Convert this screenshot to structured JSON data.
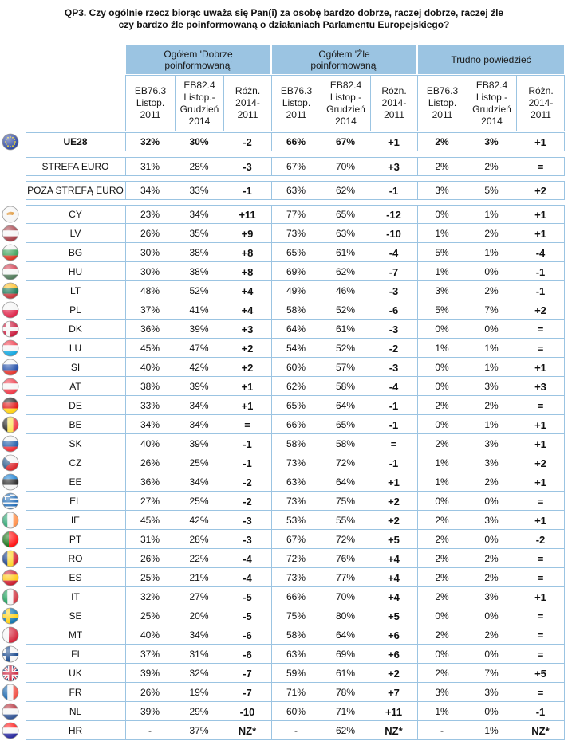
{
  "title": {
    "line1": "QP3. Czy ogólnie rzecz biorąc uważa się Pan(i) za osobę bardzo dobrze, raczej dobrze, raczej źle",
    "line2": "czy bardzo źle poinformowaną o działaniach Parlamentu Europejskiego?"
  },
  "groups": [
    {
      "label": "Ogółem 'Dobrze poinformowaną'"
    },
    {
      "label": "Ogółem 'Źle poinformowaną'"
    },
    {
      "label": "Trudno powiedzieć"
    }
  ],
  "subheaders": [
    "EB76.3 Listop. 2011",
    "EB82.4 Listop.- Grudzień 2014",
    "Różn. 2014- 2011"
  ],
  "colors": {
    "header_bg": "#9bc4e2",
    "border": "#9bc4e2"
  },
  "rows": [
    {
      "label": "UE28",
      "flag": "eu",
      "v": [
        "32%",
        "30%",
        "-2",
        "66%",
        "67%",
        "+1",
        "2%",
        "3%",
        "+1"
      ],
      "bold": true
    },
    {
      "label": "STREFA EURO",
      "flag": "",
      "v": [
        "31%",
        "28%",
        "-3",
        "67%",
        "70%",
        "+3",
        "2%",
        "2%",
        "="
      ]
    },
    {
      "label": "POZA STREFĄ EURO",
      "flag": "",
      "v": [
        "34%",
        "33%",
        "-1",
        "63%",
        "62%",
        "-1",
        "3%",
        "5%",
        "+2"
      ]
    },
    {
      "label": "CY",
      "flag": "cy",
      "v": [
        "23%",
        "34%",
        "+11",
        "77%",
        "65%",
        "-12",
        "0%",
        "1%",
        "+1"
      ]
    },
    {
      "label": "LV",
      "flag": "lv",
      "v": [
        "26%",
        "35%",
        "+9",
        "73%",
        "63%",
        "-10",
        "1%",
        "2%",
        "+1"
      ]
    },
    {
      "label": "BG",
      "flag": "bg",
      "v": [
        "30%",
        "38%",
        "+8",
        "65%",
        "61%",
        "-4",
        "5%",
        "1%",
        "-4"
      ]
    },
    {
      "label": "HU",
      "flag": "hu",
      "v": [
        "30%",
        "38%",
        "+8",
        "69%",
        "62%",
        "-7",
        "1%",
        "0%",
        "-1"
      ]
    },
    {
      "label": "LT",
      "flag": "lt",
      "v": [
        "48%",
        "52%",
        "+4",
        "49%",
        "46%",
        "-3",
        "3%",
        "2%",
        "-1"
      ]
    },
    {
      "label": "PL",
      "flag": "pl",
      "v": [
        "37%",
        "41%",
        "+4",
        "58%",
        "52%",
        "-6",
        "5%",
        "7%",
        "+2"
      ]
    },
    {
      "label": "DK",
      "flag": "dk",
      "v": [
        "36%",
        "39%",
        "+3",
        "64%",
        "61%",
        "-3",
        "0%",
        "0%",
        "="
      ]
    },
    {
      "label": "LU",
      "flag": "lu",
      "v": [
        "45%",
        "47%",
        "+2",
        "54%",
        "52%",
        "-2",
        "1%",
        "1%",
        "="
      ]
    },
    {
      "label": "SI",
      "flag": "si",
      "v": [
        "40%",
        "42%",
        "+2",
        "60%",
        "57%",
        "-3",
        "0%",
        "1%",
        "+1"
      ]
    },
    {
      "label": "AT",
      "flag": "at",
      "v": [
        "38%",
        "39%",
        "+1",
        "62%",
        "58%",
        "-4",
        "0%",
        "3%",
        "+3"
      ]
    },
    {
      "label": "DE",
      "flag": "de",
      "v": [
        "33%",
        "34%",
        "+1",
        "65%",
        "64%",
        "-1",
        "2%",
        "2%",
        "="
      ]
    },
    {
      "label": "BE",
      "flag": "be",
      "v": [
        "34%",
        "34%",
        "=",
        "66%",
        "65%",
        "-1",
        "0%",
        "1%",
        "+1"
      ]
    },
    {
      "label": "SK",
      "flag": "sk",
      "v": [
        "40%",
        "39%",
        "-1",
        "58%",
        "58%",
        "=",
        "2%",
        "3%",
        "+1"
      ]
    },
    {
      "label": "CZ",
      "flag": "cz",
      "v": [
        "26%",
        "25%",
        "-1",
        "73%",
        "72%",
        "-1",
        "1%",
        "3%",
        "+2"
      ]
    },
    {
      "label": "EE",
      "flag": "ee",
      "v": [
        "36%",
        "34%",
        "-2",
        "63%",
        "64%",
        "+1",
        "1%",
        "2%",
        "+1"
      ]
    },
    {
      "label": "EL",
      "flag": "el",
      "v": [
        "27%",
        "25%",
        "-2",
        "73%",
        "75%",
        "+2",
        "0%",
        "0%",
        "="
      ]
    },
    {
      "label": "IE",
      "flag": "ie",
      "v": [
        "45%",
        "42%",
        "-3",
        "53%",
        "55%",
        "+2",
        "2%",
        "3%",
        "+1"
      ]
    },
    {
      "label": "PT",
      "flag": "pt",
      "v": [
        "31%",
        "28%",
        "-3",
        "67%",
        "72%",
        "+5",
        "2%",
        "0%",
        "-2"
      ]
    },
    {
      "label": "RO",
      "flag": "ro",
      "v": [
        "26%",
        "22%",
        "-4",
        "72%",
        "76%",
        "+4",
        "2%",
        "2%",
        "="
      ]
    },
    {
      "label": "ES",
      "flag": "es",
      "v": [
        "25%",
        "21%",
        "-4",
        "73%",
        "77%",
        "+4",
        "2%",
        "2%",
        "="
      ]
    },
    {
      "label": "IT",
      "flag": "it",
      "v": [
        "32%",
        "27%",
        "-5",
        "66%",
        "70%",
        "+4",
        "2%",
        "3%",
        "+1"
      ]
    },
    {
      "label": "SE",
      "flag": "se",
      "v": [
        "25%",
        "20%",
        "-5",
        "75%",
        "80%",
        "+5",
        "0%",
        "0%",
        "="
      ]
    },
    {
      "label": "MT",
      "flag": "mt",
      "v": [
        "40%",
        "34%",
        "-6",
        "58%",
        "64%",
        "+6",
        "2%",
        "2%",
        "="
      ]
    },
    {
      "label": "FI",
      "flag": "fi",
      "v": [
        "37%",
        "31%",
        "-6",
        "63%",
        "69%",
        "+6",
        "0%",
        "0%",
        "="
      ]
    },
    {
      "label": "UK",
      "flag": "uk",
      "v": [
        "39%",
        "32%",
        "-7",
        "59%",
        "61%",
        "+2",
        "2%",
        "7%",
        "+5"
      ]
    },
    {
      "label": "FR",
      "flag": "fr",
      "v": [
        "26%",
        "19%",
        "-7",
        "71%",
        "78%",
        "+7",
        "3%",
        "3%",
        "="
      ]
    },
    {
      "label": "NL",
      "flag": "nl",
      "v": [
        "39%",
        "29%",
        "-10",
        "60%",
        "71%",
        "+11",
        "1%",
        "0%",
        "-1"
      ]
    },
    {
      "label": "HR",
      "flag": "hr",
      "v": [
        "-",
        "37%",
        "NZ*",
        "-",
        "62%",
        "NZ*",
        "-",
        "1%",
        "NZ*"
      ]
    }
  ]
}
